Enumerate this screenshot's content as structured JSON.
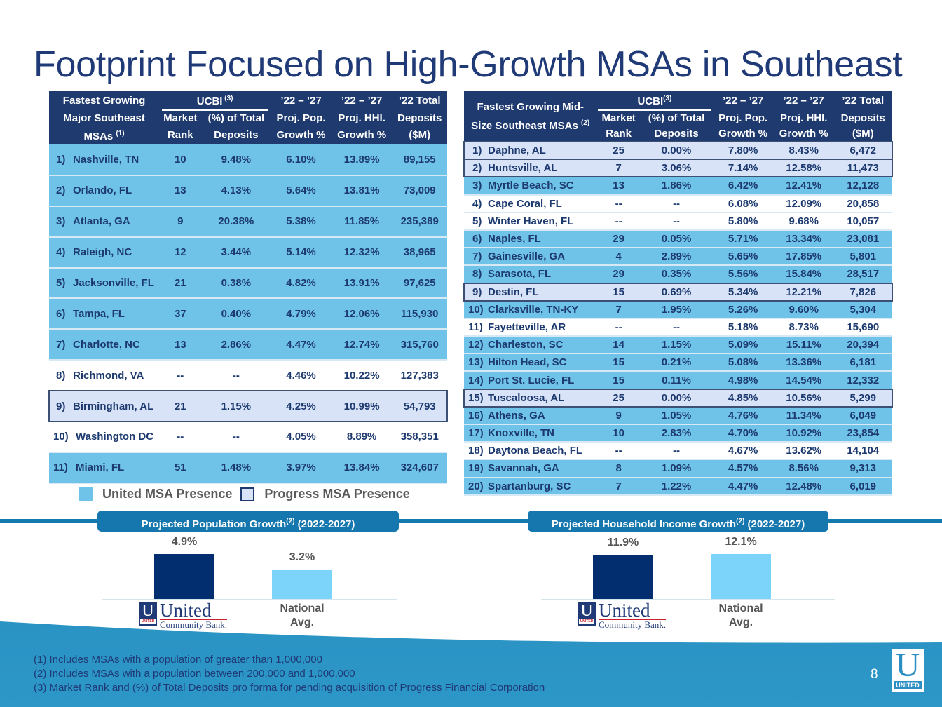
{
  "title": "Footprint Focused on High-Growth MSAs in Southeast",
  "major_table": {
    "headers": {
      "msa_line1": "Fastest Growing",
      "msa_line2": "Major Southeast",
      "msa_line3": "MSAs",
      "msa_note": "(1)",
      "ucbi": "UCBI",
      "ucbi_note": "(3)",
      "rank_line1": "Market",
      "rank_line2": "Rank",
      "pct_line1": "(%) of Total",
      "pct_line2": "Deposits",
      "pop_line1": "’22 – ’27",
      "pop_line2": "Proj. Pop.",
      "pop_line3": "Growth %",
      "hhi_line1": "’22 – ’27",
      "hhi_line2": "Proj. HHI.",
      "hhi_line3": "Growth %",
      "dep_line1": "’22 Total",
      "dep_line2": "Deposits",
      "dep_line3": "($M)"
    },
    "rows": [
      {
        "num": "1)",
        "msa": "Nashville, TN",
        "rank": "10",
        "pct": "9.48%",
        "pop": "6.10%",
        "hhi": "13.89%",
        "dep": "89,155",
        "presence": "united"
      },
      {
        "num": "2)",
        "msa": "Orlando, FL",
        "rank": "13",
        "pct": "4.13%",
        "pop": "5.64%",
        "hhi": "13.81%",
        "dep": "73,009",
        "presence": "united"
      },
      {
        "num": "3)",
        "msa": "Atlanta, GA",
        "rank": "9",
        "pct": "20.38%",
        "pop": "5.38%",
        "hhi": "11.85%",
        "dep": "235,389",
        "presence": "united"
      },
      {
        "num": "4)",
        "msa": "Raleigh, NC",
        "rank": "12",
        "pct": "3.44%",
        "pop": "5.14%",
        "hhi": "12.32%",
        "dep": "38,965",
        "presence": "united"
      },
      {
        "num": "5)",
        "msa": "Jacksonville, FL",
        "rank": "21",
        "pct": "0.38%",
        "pop": "4.82%",
        "hhi": "13.91%",
        "dep": "97,625",
        "presence": "united"
      },
      {
        "num": "6)",
        "msa": "Tampa, FL",
        "rank": "37",
        "pct": "0.40%",
        "pop": "4.79%",
        "hhi": "12.06%",
        "dep": "115,930",
        "presence": "united"
      },
      {
        "num": "7)",
        "msa": "Charlotte, NC",
        "rank": "13",
        "pct": "2.86%",
        "pop": "4.47%",
        "hhi": "12.74%",
        "dep": "315,760",
        "presence": "united"
      },
      {
        "num": "8)",
        "msa": "Richmond, VA",
        "rank": "--",
        "pct": "--",
        "pop": "4.46%",
        "hhi": "10.22%",
        "dep": "127,383",
        "presence": "none"
      },
      {
        "num": "9)",
        "msa": "Birmingham, AL",
        "rank": "21",
        "pct": "1.15%",
        "pop": "4.25%",
        "hhi": "10.99%",
        "dep": "54,793",
        "presence": "progress"
      },
      {
        "num": "10)",
        "msa": "Washington DC",
        "rank": "--",
        "pct": "--",
        "pop": "4.05%",
        "hhi": "8.89%",
        "dep": "358,351",
        "presence": "none"
      },
      {
        "num": "11)",
        "msa": "Miami, FL",
        "rank": "51",
        "pct": "1.48%",
        "pop": "3.97%",
        "hhi": "13.84%",
        "dep": "324,607",
        "presence": "united"
      }
    ]
  },
  "mid_table": {
    "headers": {
      "msa_line1": "Fastest Growing Mid-",
      "msa_line2": "Size Southeast MSAs",
      "msa_note": "(2)",
      "ucbi": "UCBI",
      "ucbi_note": "(3)",
      "rank_line1": "Market",
      "rank_line2": "Rank",
      "pct_line1": "(%) of Total",
      "pct_line2": "Deposits",
      "pop_line1": "’22 – ’27",
      "pop_line2": "Proj. Pop.",
      "pop_line3": "Growth %",
      "hhi_line1": "’22 – ’27",
      "hhi_line2": "Proj. HHI.",
      "hhi_line3": "Growth %",
      "dep_line1": "’22 Total",
      "dep_line2": "Deposits",
      "dep_line3": "($M)"
    },
    "rows": [
      {
        "num": "1)",
        "msa": "Daphne, AL",
        "rank": "25",
        "pct": "0.00%",
        "pop": "7.80%",
        "hhi": "8.43%",
        "dep": "6,472",
        "presence": "progress"
      },
      {
        "num": "2)",
        "msa": "Huntsville, AL",
        "rank": "7",
        "pct": "3.06%",
        "pop": "7.14%",
        "hhi": "12.58%",
        "dep": "11,473",
        "presence": "progress"
      },
      {
        "num": "3)",
        "msa": "Myrtle Beach, SC",
        "rank": "13",
        "pct": "1.86%",
        "pop": "6.42%",
        "hhi": "12.41%",
        "dep": "12,128",
        "presence": "united"
      },
      {
        "num": "4)",
        "msa": "Cape Coral, FL",
        "rank": "--",
        "pct": "--",
        "pop": "6.08%",
        "hhi": "12.09%",
        "dep": "20,858",
        "presence": "none"
      },
      {
        "num": "5)",
        "msa": "Winter Haven, FL",
        "rank": "--",
        "pct": "--",
        "pop": "5.80%",
        "hhi": "9.68%",
        "dep": "10,057",
        "presence": "none"
      },
      {
        "num": "6)",
        "msa": "Naples, FL",
        "rank": "29",
        "pct": "0.05%",
        "pop": "5.71%",
        "hhi": "13.34%",
        "dep": "23,081",
        "presence": "united"
      },
      {
        "num": "7)",
        "msa": "Gainesville, GA",
        "rank": "4",
        "pct": "2.89%",
        "pop": "5.65%",
        "hhi": "17.85%",
        "dep": "5,801",
        "presence": "united"
      },
      {
        "num": "8)",
        "msa": "Sarasota, FL",
        "rank": "29",
        "pct": "0.35%",
        "pop": "5.56%",
        "hhi": "15.84%",
        "dep": "28,517",
        "presence": "united"
      },
      {
        "num": "9)",
        "msa": "Destin, FL",
        "rank": "15",
        "pct": "0.69%",
        "pop": "5.34%",
        "hhi": "12.21%",
        "dep": "7,826",
        "presence": "progress"
      },
      {
        "num": "10)",
        "msa": "Clarksville, TN-KY",
        "rank": "7",
        "pct": "1.95%",
        "pop": "5.26%",
        "hhi": "9.60%",
        "dep": "5,304",
        "presence": "united"
      },
      {
        "num": "11)",
        "msa": "Fayetteville, AR",
        "rank": "--",
        "pct": "--",
        "pop": "5.18%",
        "hhi": "8.73%",
        "dep": "15,690",
        "presence": "none"
      },
      {
        "num": "12)",
        "msa": "Charleston, SC",
        "rank": "14",
        "pct": "1.15%",
        "pop": "5.09%",
        "hhi": "15.11%",
        "dep": "20,394",
        "presence": "united"
      },
      {
        "num": "13)",
        "msa": "Hilton Head, SC",
        "rank": "15",
        "pct": "0.21%",
        "pop": "5.08%",
        "hhi": "13.36%",
        "dep": "6,181",
        "presence": "united"
      },
      {
        "num": "14)",
        "msa": "Port St. Lucie, FL",
        "rank": "15",
        "pct": "0.11%",
        "pop": "4.98%",
        "hhi": "14.54%",
        "dep": "12,332",
        "presence": "united"
      },
      {
        "num": "15)",
        "msa": "Tuscaloosa, AL",
        "rank": "25",
        "pct": "0.00%",
        "pop": "4.85%",
        "hhi": "10.56%",
        "dep": "5,299",
        "presence": "progress"
      },
      {
        "num": "16)",
        "msa": "Athens, GA",
        "rank": "9",
        "pct": "1.05%",
        "pop": "4.76%",
        "hhi": "11.34%",
        "dep": "6,049",
        "presence": "united"
      },
      {
        "num": "17)",
        "msa": "Knoxville, TN",
        "rank": "10",
        "pct": "2.83%",
        "pop": "4.70%",
        "hhi": "10.92%",
        "dep": "23,854",
        "presence": "united"
      },
      {
        "num": "18)",
        "msa": "Daytona Beach, FL",
        "rank": "--",
        "pct": "--",
        "pop": "4.67%",
        "hhi": "13.62%",
        "dep": "14,104",
        "presence": "none"
      },
      {
        "num": "19)",
        "msa": "Savannah, GA",
        "rank": "8",
        "pct": "1.09%",
        "pop": "4.57%",
        "hhi": "8.56%",
        "dep": "9,313",
        "presence": "united"
      },
      {
        "num": "20)",
        "msa": "Spartanburg, SC",
        "rank": "7",
        "pct": "1.22%",
        "pop": "4.47%",
        "hhi": "12.48%",
        "dep": "6,019",
        "presence": "united"
      }
    ]
  },
  "legend": {
    "united": "United MSA Presence",
    "progress": "Progress MSA Presence"
  },
  "colors": {
    "navy": "#1f3a6e",
    "united_presence": "#6fc3e8",
    "progress_presence": "#d8e3f8",
    "accent_blue": "#1577ad",
    "bar_ucb": "#022e6f",
    "bar_national": "#7dd4fb"
  },
  "logo": {
    "mark_letter": "U",
    "mark_tag": "UNITED",
    "word1": "United",
    "word2": "Community Bank."
  },
  "chart_data": [
    {
      "type": "bar",
      "title": "Projected Population Growth",
      "title_note": "(2)",
      "title_suffix": "(2022-2027)",
      "categories": [
        "United Community Bank",
        "National Avg."
      ],
      "category_label_national": [
        "National",
        "Avg."
      ],
      "values": [
        4.9,
        3.2
      ],
      "value_labels": [
        "4.9%",
        "3.2%"
      ],
      "ylim": [
        0,
        4.9
      ],
      "xlabel": "",
      "ylabel": "",
      "grid": false
    },
    {
      "type": "bar",
      "title": "Projected Household Income Growth",
      "title_note": "(2)",
      "title_suffix": "(2022-2027)",
      "categories": [
        "United Community Bank",
        "National Avg."
      ],
      "category_label_national": [
        "National",
        "Avg."
      ],
      "values": [
        11.9,
        12.1
      ],
      "value_labels": [
        "11.9%",
        "12.1%"
      ],
      "ylim": [
        0,
        12.1
      ],
      "xlabel": "",
      "ylabel": "",
      "grid": false
    }
  ],
  "footnotes": [
    "(1) Includes MSAs with a population of greater than 1,000,000",
    "(2) Includes MSAs with a population between 200,000 and 1,000,000",
    "(3) Market Rank and (%) of Total Deposits pro forma for pending acquisition of Progress Financial Corporation"
  ],
  "page_number": "8",
  "corner_logo": {
    "letter": "U",
    "tag": "UNITED"
  }
}
